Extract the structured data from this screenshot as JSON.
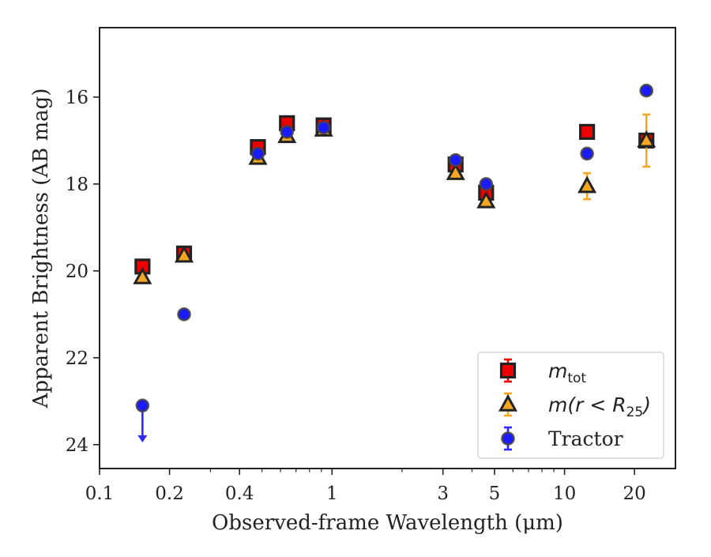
{
  "chart_data": {
    "type": "scatter",
    "title": "",
    "xlabel": "Observed-frame Wavelength (μm)",
    "ylabel": "Apparent Brightness (AB mag)",
    "x_scale": "log",
    "xlim": [
      0.1,
      30
    ],
    "ylim": [
      24.55,
      14.4
    ],
    "y_inverted": true,
    "x_ticks": [
      {
        "value": 0.1,
        "label": "0.1"
      },
      {
        "value": 0.2,
        "label": "0.2"
      },
      {
        "value": 0.4,
        "label": "0.4"
      },
      {
        "value": 1,
        "label": "1"
      },
      {
        "value": 3,
        "label": "3"
      },
      {
        "value": 5,
        "label": "5"
      },
      {
        "value": 10,
        "label": "10"
      },
      {
        "value": 20,
        "label": "20"
      }
    ],
    "y_ticks": [
      {
        "value": 16,
        "label": "16"
      },
      {
        "value": 18,
        "label": "18"
      },
      {
        "value": 20,
        "label": "20"
      },
      {
        "value": 22,
        "label": "22"
      },
      {
        "value": 24,
        "label": "24"
      }
    ],
    "grid": false,
    "legend_position": "bottom-right",
    "series": [
      {
        "label_main": "m",
        "label_sub": "tot",
        "marker": "square",
        "color": "#ee0000",
        "errcolor": "#ee0000",
        "points": [
          {
            "x": 0.153,
            "y": 19.9,
            "err": 0.06
          },
          {
            "x": 0.231,
            "y": 19.6,
            "err": 0.06
          },
          {
            "x": 0.48,
            "y": 17.15,
            "err": 0.06
          },
          {
            "x": 0.64,
            "y": 16.6,
            "err": 0.06
          },
          {
            "x": 0.92,
            "y": 16.65,
            "err": 0.06
          },
          {
            "x": 3.4,
            "y": 17.55,
            "err": 0.06
          },
          {
            "x": 4.6,
            "y": 18.2,
            "err": 0.06
          },
          {
            "x": 12.5,
            "y": 16.8,
            "err": 0.06
          },
          {
            "x": 22.5,
            "y": 17.0,
            "err": 0.06
          }
        ]
      },
      {
        "label_main": "m(r < R",
        "label_sub": "25",
        "label_tail": ")",
        "marker": "triangle",
        "color": "#f5a623",
        "errcolor": "#f5a623",
        "points": [
          {
            "x": 0.153,
            "y": 20.15,
            "err": 0.06
          },
          {
            "x": 0.231,
            "y": 19.65,
            "err": 0.06
          },
          {
            "x": 0.48,
            "y": 17.4,
            "err": 0.06
          },
          {
            "x": 0.64,
            "y": 16.9,
            "err": 0.06
          },
          {
            "x": 0.92,
            "y": 16.75,
            "err": 0.06
          },
          {
            "x": 3.4,
            "y": 17.75,
            "err": 0.06
          },
          {
            "x": 4.6,
            "y": 18.4,
            "err": 0.06
          },
          {
            "x": 12.5,
            "y": 18.05,
            "err": 0.3
          },
          {
            "x": 22.5,
            "y": 17.0,
            "err": 0.6
          }
        ]
      },
      {
        "label_main": "Tractor",
        "marker": "circle",
        "color": "#1a1aff",
        "errcolor": "#2a2aff",
        "points": [
          {
            "x": 0.153,
            "y": 23.1,
            "upper_limit": true,
            "limit_to": 23.95
          },
          {
            "x": 0.231,
            "y": 21.0,
            "err": 0.05
          },
          {
            "x": 0.48,
            "y": 17.3,
            "err": 0.05
          },
          {
            "x": 0.64,
            "y": 16.8,
            "err": 0.05
          },
          {
            "x": 0.92,
            "y": 16.7,
            "err": 0.05
          },
          {
            "x": 3.4,
            "y": 17.45,
            "err": 0.05
          },
          {
            "x": 4.6,
            "y": 18.0,
            "err": 0.05
          },
          {
            "x": 12.5,
            "y": 17.3,
            "err": 0.05
          },
          {
            "x": 22.5,
            "y": 15.85,
            "err": 0.05
          }
        ]
      }
    ]
  }
}
